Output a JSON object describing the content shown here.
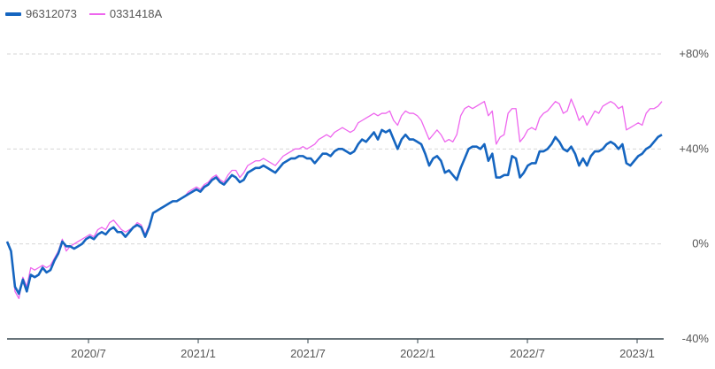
{
  "colors": {
    "series1": "#1565c0",
    "series2": "#ee66ee",
    "grid": "#d6d6d6",
    "axis": "#37474f",
    "text": "#555555"
  },
  "legend": [
    {
      "name": "96312073",
      "style": "thick"
    },
    {
      "name": "0331418A",
      "style": "thin"
    }
  ],
  "chart_data": {
    "type": "line",
    "title": "",
    "xlabel": "",
    "ylabel": "",
    "ylim": [
      -40,
      80
    ],
    "x_ticks": [
      "2020/7",
      "2021/1",
      "2021/7",
      "2022/1",
      "2022/7",
      "2023/1"
    ],
    "y_ticks": [
      {
        "value": 80,
        "label": "+80%"
      },
      {
        "value": 40,
        "label": "+40%"
      },
      {
        "value": 0,
        "label": "0%"
      },
      {
        "value": -40,
        "label": "-40%"
      }
    ],
    "grid": "horizontal dashed",
    "legend_position": "top-left",
    "series": [
      {
        "name": "96312073",
        "values": [
          1,
          -3,
          -18,
          -21,
          -15,
          -20,
          -13,
          -14,
          -13,
          -10,
          -12,
          -11,
          -7,
          -4,
          1,
          -1,
          -1,
          -2,
          -1,
          0,
          2,
          3,
          2,
          4,
          5,
          4,
          6,
          7,
          5,
          5,
          3,
          5,
          7,
          8,
          7,
          3,
          7,
          13,
          14,
          15,
          16,
          17,
          18,
          18,
          19,
          20,
          21,
          22,
          23,
          22,
          24,
          25,
          27,
          28,
          26,
          25,
          27,
          29,
          28,
          26,
          27,
          30,
          31,
          32,
          32,
          33,
          32,
          31,
          30,
          32,
          34,
          35,
          36,
          36,
          37,
          37,
          36,
          36,
          34,
          36,
          38,
          38,
          37,
          39,
          40,
          40,
          39,
          38,
          39,
          42,
          44,
          43,
          45,
          47,
          44,
          48,
          47,
          48,
          44,
          40,
          44,
          46,
          44,
          44,
          43,
          42,
          38,
          33,
          36,
          37,
          35,
          30,
          31,
          29,
          27,
          32,
          36,
          40,
          41,
          41,
          40,
          42,
          35,
          38,
          28,
          28,
          29,
          29,
          37,
          36,
          28,
          30,
          33,
          34,
          34,
          39,
          39,
          40,
          42,
          45,
          43,
          40,
          39,
          41,
          38,
          33,
          36,
          33,
          37,
          39,
          39,
          40,
          42,
          43,
          42,
          40,
          42,
          34,
          33,
          35,
          37,
          38,
          40,
          41,
          43,
          45,
          46
        ]
      },
      {
        "name": "0331418A",
        "values": [
          1,
          -3,
          -20,
          -23,
          -14,
          -18,
          -10,
          -11,
          -10,
          -9,
          -10,
          -9,
          -6,
          -3,
          2,
          -3,
          -1,
          0,
          1,
          2,
          3,
          4,
          3,
          6,
          7,
          6,
          9,
          10,
          8,
          6,
          5,
          6,
          7,
          9,
          8,
          4,
          8,
          13,
          14,
          15,
          16,
          17,
          18,
          18,
          19,
          20,
          22,
          23,
          24,
          23,
          25,
          26,
          28,
          29,
          27,
          26,
          29,
          31,
          31,
          28,
          30,
          33,
          34,
          35,
          35,
          36,
          35,
          34,
          33,
          35,
          37,
          38,
          39,
          40,
          40,
          41,
          40,
          41,
          42,
          44,
          45,
          46,
          45,
          47,
          48,
          49,
          48,
          47,
          48,
          51,
          52,
          53,
          54,
          55,
          54,
          55,
          55,
          56,
          52,
          50,
          54,
          56,
          55,
          55,
          54,
          52,
          48,
          44,
          46,
          48,
          46,
          43,
          44,
          43,
          46,
          54,
          57,
          58,
          57,
          58,
          59,
          60,
          54,
          56,
          42,
          45,
          46,
          55,
          57,
          57,
          43,
          45,
          48,
          49,
          48,
          53,
          55,
          56,
          58,
          60,
          59,
          55,
          56,
          61,
          57,
          52,
          54,
          50,
          53,
          56,
          55,
          58,
          59,
          60,
          59,
          57,
          58,
          48,
          49,
          50,
          51,
          50,
          55,
          57,
          57,
          58,
          60
        ]
      }
    ]
  }
}
